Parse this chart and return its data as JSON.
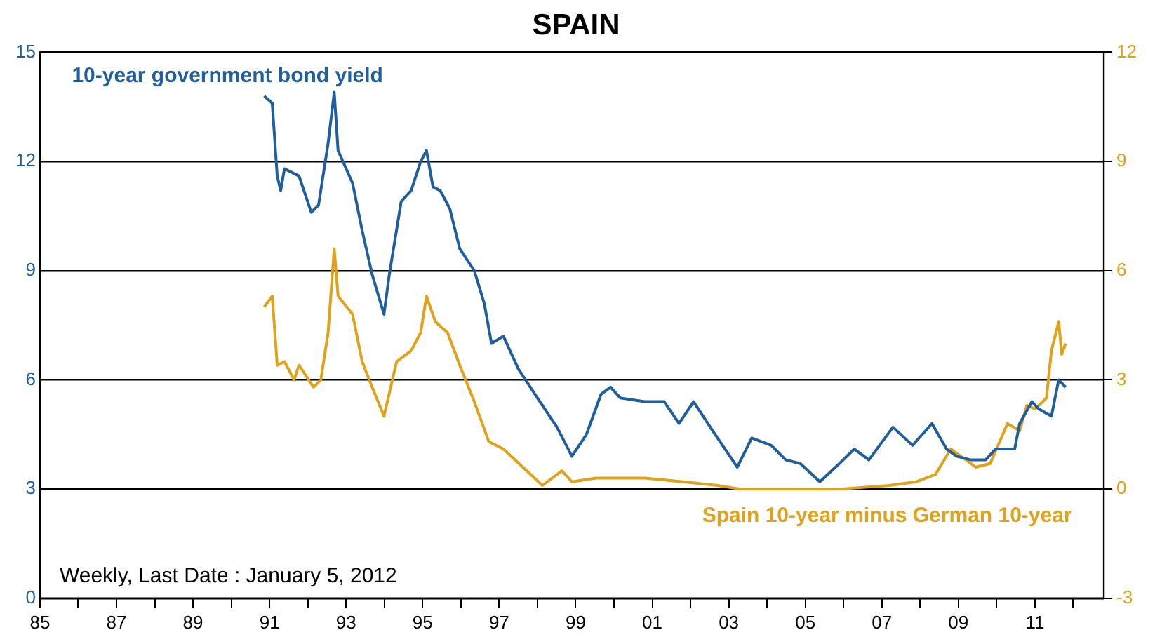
{
  "chart_data": {
    "type": "line",
    "title": "SPAIN",
    "xlim": [
      1985,
      2012.8
    ],
    "xticks": [
      {
        "value": 1985,
        "label": "85"
      },
      {
        "value": 1986,
        "label": null
      },
      {
        "value": 1987,
        "label": "87"
      },
      {
        "value": 1988,
        "label": null
      },
      {
        "value": 1989,
        "label": "89"
      },
      {
        "value": 1990,
        "label": null
      },
      {
        "value": 1991,
        "label": "91"
      },
      {
        "value": 1992,
        "label": null
      },
      {
        "value": 1993,
        "label": "93"
      },
      {
        "value": 1994,
        "label": null
      },
      {
        "value": 1995,
        "label": "95"
      },
      {
        "value": 1996,
        "label": null
      },
      {
        "value": 1997,
        "label": "97"
      },
      {
        "value": 1998,
        "label": null
      },
      {
        "value": 1999,
        "label": "99"
      },
      {
        "value": 2000,
        "label": null
      },
      {
        "value": 2001,
        "label": "01"
      },
      {
        "value": 2002,
        "label": null
      },
      {
        "value": 2003,
        "label": "03"
      },
      {
        "value": 2004,
        "label": null
      },
      {
        "value": 2005,
        "label": "05"
      },
      {
        "value": 2006,
        "label": null
      },
      {
        "value": 2007,
        "label": "07"
      },
      {
        "value": 2008,
        "label": null
      },
      {
        "value": 2009,
        "label": "09"
      },
      {
        "value": 2010,
        "label": null
      },
      {
        "value": 2011,
        "label": "11"
      },
      {
        "value": 2012,
        "label": null
      }
    ],
    "ylim": [
      0,
      15
    ],
    "yticks": [
      0,
      3,
      6,
      9,
      12,
      15
    ],
    "y2lim": [
      -3,
      12
    ],
    "y2ticks": [
      -3,
      0,
      3,
      6,
      9,
      12
    ],
    "grid": "y",
    "legend": false,
    "marker": "none",
    "line_style": "solid",
    "annotations": [
      "Weekly, Last Date : January 5, 2012"
    ],
    "series": [
      {
        "name": "10-year government bond yield",
        "color": "#1f5f9e",
        "x": [
          1990.86,
          1991.07,
          1991.2,
          1991.29,
          1991.39,
          1991.77,
          1992.09,
          1992.28,
          1992.53,
          1992.69,
          1992.79,
          1993.17,
          1993.42,
          1993.68,
          1993.99,
          1994.13,
          1994.44,
          1994.7,
          1994.95,
          1995.1,
          1995.27,
          1995.46,
          1995.71,
          1995.97,
          1996.35,
          1996.61,
          1996.8,
          1997.11,
          1997.5,
          1998.0,
          1998.51,
          1998.9,
          1999.28,
          1999.66,
          1999.91,
          2000.17,
          2000.8,
          2001.31,
          2001.7,
          2002.08,
          2002.58,
          2003.22,
          2003.6,
          2004.11,
          2004.49,
          2004.87,
          2005.38,
          2005.89,
          2006.28,
          2006.66,
          2007.29,
          2007.8,
          2008.31,
          2008.69,
          2008.95,
          2009.33,
          2009.71,
          2009.97,
          2010.47,
          2010.6,
          2010.92,
          2011.1,
          2011.43,
          2011.62,
          2011.8
        ],
        "values": [
          13.8,
          13.6,
          11.6,
          11.2,
          11.8,
          11.6,
          10.6,
          10.8,
          12.5,
          13.9,
          12.3,
          11.4,
          10.1,
          8.9,
          7.8,
          8.9,
          10.9,
          11.2,
          12.0,
          12.3,
          11.3,
          11.2,
          10.7,
          9.6,
          9.0,
          8.1,
          7.0,
          7.2,
          6.3,
          5.5,
          4.7,
          3.9,
          4.5,
          5.6,
          5.8,
          5.5,
          5.4,
          5.4,
          4.8,
          5.4,
          4.6,
          3.6,
          4.4,
          4.2,
          3.8,
          3.7,
          3.2,
          3.7,
          4.1,
          3.8,
          4.7,
          4.2,
          4.8,
          4.1,
          3.9,
          3.8,
          3.8,
          4.1,
          4.1,
          4.8,
          5.4,
          5.2,
          5.0,
          6.0,
          5.8
        ]
      },
      {
        "name": "Spain 10-year minus German 10-year",
        "color": "#e0a21a",
        "axis": "y2",
        "x": [
          1990.86,
          1991.07,
          1991.2,
          1991.39,
          1991.64,
          1991.77,
          1992.15,
          1992.34,
          1992.53,
          1992.69,
          1992.79,
          1993.17,
          1993.42,
          1993.68,
          1993.99,
          1994.32,
          1994.7,
          1994.95,
          1995.1,
          1995.33,
          1995.65,
          1995.97,
          1996.35,
          1996.73,
          1997.11,
          1997.62,
          1998.13,
          1998.64,
          1998.9,
          1999.53,
          2000.8,
          2001.8,
          2002.7,
          2003.3,
          2004.6,
          2005.9,
          2007.2,
          2007.9,
          2008.4,
          2008.8,
          2009.2,
          2009.45,
          2009.83,
          2010.16,
          2010.28,
          2010.6,
          2010.79,
          2011.0,
          2011.3,
          2011.43,
          2011.62,
          2011.7,
          2011.8
        ],
        "values": [
          5.0,
          5.3,
          3.4,
          3.5,
          3.0,
          3.4,
          2.8,
          3.0,
          4.3,
          6.6,
          5.3,
          4.8,
          3.5,
          2.8,
          2.0,
          3.5,
          3.8,
          4.3,
          5.3,
          4.6,
          4.3,
          3.4,
          2.4,
          1.3,
          1.1,
          0.6,
          0.1,
          0.5,
          0.2,
          0.3,
          0.3,
          0.2,
          0.1,
          0.0,
          0.0,
          0.0,
          0.1,
          0.2,
          0.4,
          1.1,
          0.8,
          0.6,
          0.7,
          1.5,
          1.8,
          1.6,
          2.3,
          2.2,
          2.5,
          3.8,
          4.6,
          3.7,
          4.0
        ]
      }
    ]
  }
}
